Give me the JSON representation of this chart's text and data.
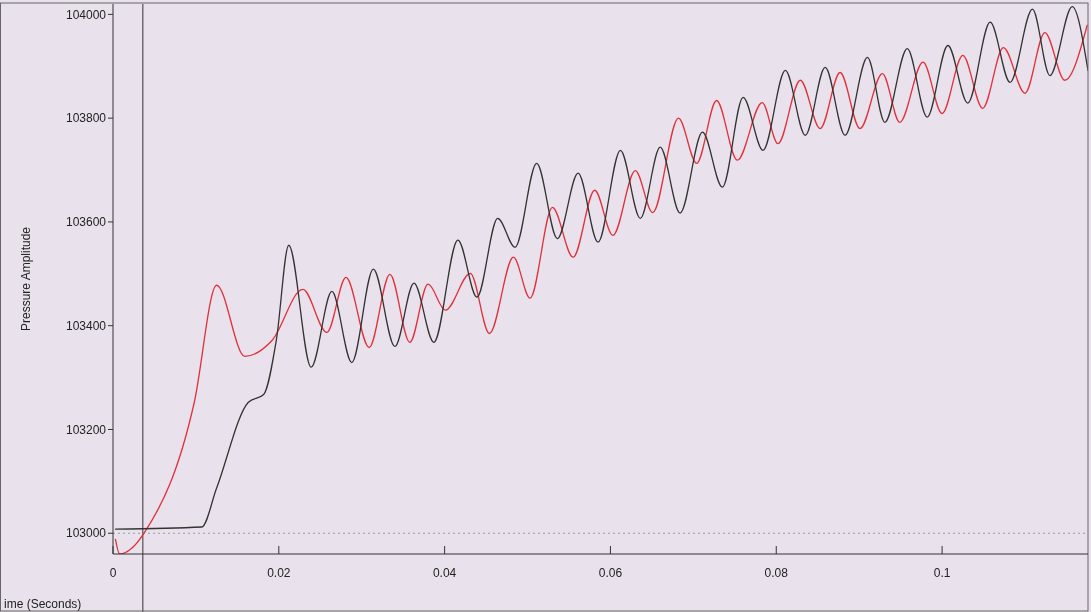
{
  "chart_data": {
    "type": "line",
    "xlabel": "ime (Seconds)",
    "ylabel": "Pressure Amplitude",
    "xlim": [
      0,
      0.1176
    ],
    "ylim": [
      102960,
      104020
    ],
    "xticks": [
      0,
      0.02,
      0.04,
      0.06,
      0.08,
      0.1
    ],
    "yticks": [
      103000,
      103200,
      103400,
      103600,
      103800,
      104000
    ],
    "grid": false,
    "line_style": "solid",
    "marker": "none",
    "ref_lines": [
      {
        "axis": "x",
        "value": 0.0036,
        "label": null,
        "color": "#333333",
        "line_style": "solid"
      },
      {
        "axis": "y",
        "value": 103000,
        "label": null,
        "color": "#999999",
        "line_style": "dotted"
      }
    ],
    "series": [
      {
        "color": "#e0303a",
        "x": [
          0.0003,
          0.0008,
          0.0024,
          0.0039,
          0.0098,
          0.0125,
          0.0159,
          0.0192,
          0.0229,
          0.0258,
          0.0281,
          0.0309,
          0.0334,
          0.0358,
          0.038,
          0.0401,
          0.0431,
          0.0454,
          0.0483,
          0.0503,
          0.053,
          0.0555,
          0.0581,
          0.0603,
          0.063,
          0.0651,
          0.0682,
          0.0704,
          0.0728,
          0.0753,
          0.0783,
          0.0802,
          0.0829,
          0.0853,
          0.0877,
          0.0901,
          0.0928,
          0.0949,
          0.0977,
          0.1,
          0.1025,
          0.1049,
          0.1074,
          0.11,
          0.1124,
          0.1148,
          0.1175
        ],
        "values": [
          102988,
          102960,
          102973,
          103004,
          103252,
          103478,
          103341,
          103372,
          103470,
          103387,
          103493,
          103358,
          103499,
          103368,
          103480,
          103430,
          103501,
          103385,
          103532,
          103453,
          103628,
          103532,
          103661,
          103574,
          103699,
          103618,
          103800,
          103713,
          103834,
          103719,
          103830,
          103751,
          103873,
          103780,
          103888,
          103780,
          103886,
          103792,
          103908,
          103809,
          103921,
          103819,
          103936,
          103848,
          103965,
          103873,
          103979
        ]
      },
      {
        "color": "#333333",
        "x": [
          0.0003,
          0.0107,
          0.0125,
          0.0163,
          0.0182,
          0.0197,
          0.0212,
          0.0239,
          0.0264,
          0.0288,
          0.0314,
          0.034,
          0.0363,
          0.0387,
          0.0416,
          0.0439,
          0.0464,
          0.0485,
          0.0511,
          0.0536,
          0.0561,
          0.0585,
          0.0612,
          0.0636,
          0.066,
          0.0684,
          0.0711,
          0.0735,
          0.076,
          0.0784,
          0.0811,
          0.0835,
          0.0859,
          0.0883,
          0.091,
          0.0931,
          0.0958,
          0.0982,
          0.1007,
          0.1031,
          0.1058,
          0.1082,
          0.1109,
          0.113,
          0.1157,
          0.1176
        ],
        "values": [
          103008,
          103012,
          103087,
          103252,
          103268,
          103372,
          103555,
          103320,
          103466,
          103329,
          103509,
          103360,
          103482,
          103368,
          103565,
          103455,
          103607,
          103551,
          103713,
          103568,
          103694,
          103561,
          103738,
          103607,
          103744,
          103617,
          103773,
          103667,
          103840,
          103738,
          103892,
          103767,
          103898,
          103767,
          103917,
          103792,
          103934,
          103802,
          103940,
          103829,
          103985,
          103869,
          104010,
          103882,
          104015,
          103892
        ]
      }
    ]
  }
}
